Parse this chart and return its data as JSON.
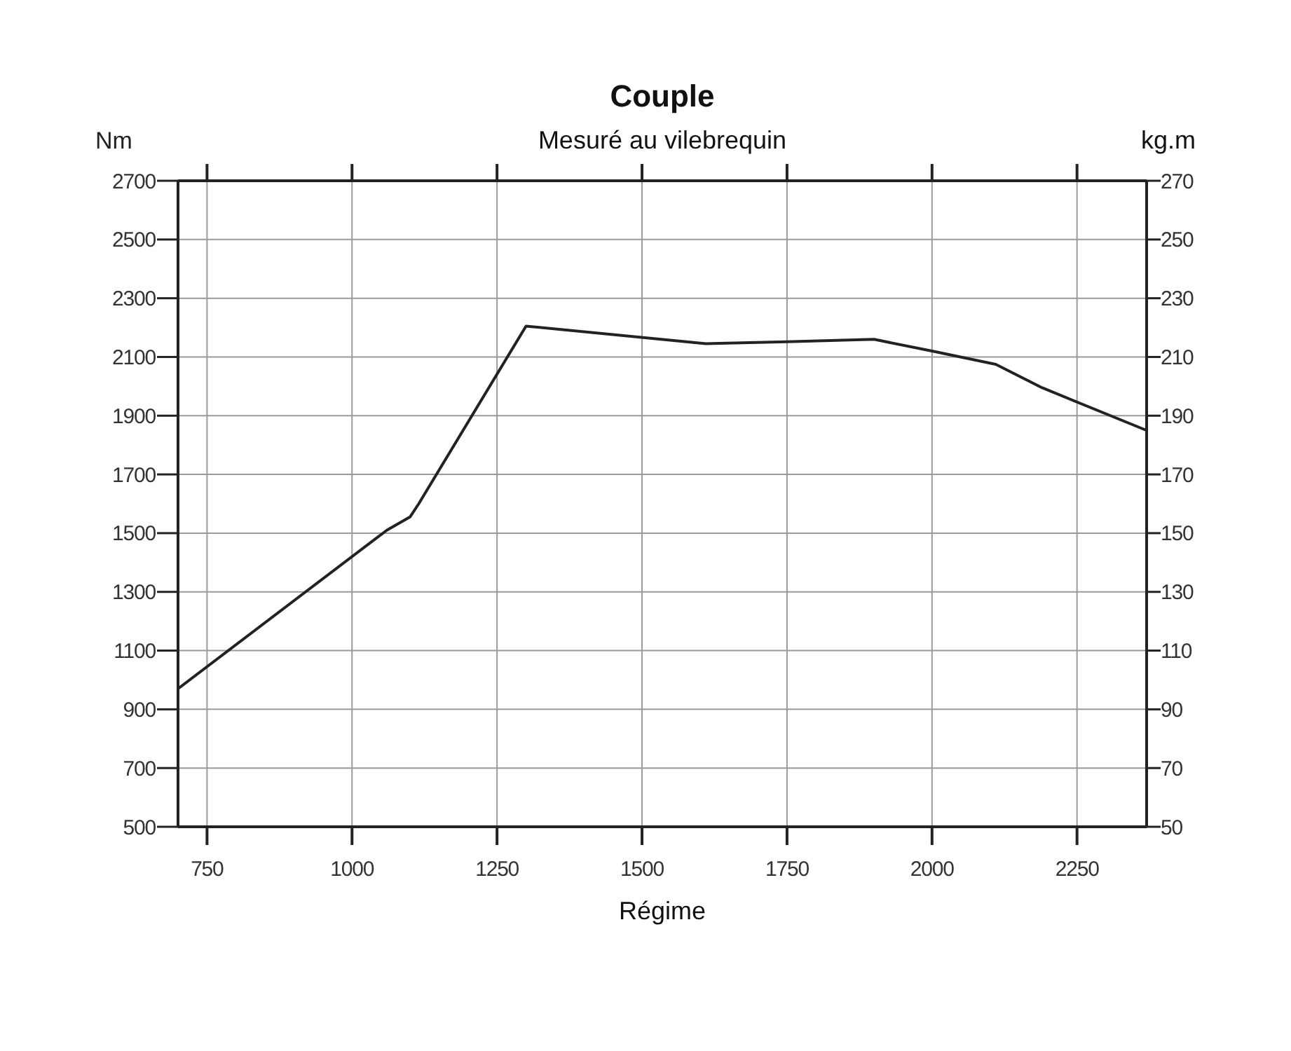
{
  "chart_data": {
    "type": "line",
    "title": "Couple",
    "subtitle": "Mesuré au vilebrequin",
    "xlabel": "Régime",
    "ylabel": "Nm",
    "y2label": "kg.m",
    "x": [
      700,
      1060,
      1100,
      1115,
      1300,
      1610,
      1750,
      1900,
      2000,
      2110,
      2190,
      2370
    ],
    "series": [
      {
        "color": "#222222",
        "values": [
          970,
          1510,
          1555,
          1600,
          2205,
          2145,
          2152,
          2160,
          2120,
          2075,
          1995,
          1850
        ]
      }
    ],
    "xlim": [
      700,
      2370
    ],
    "xticks": [
      750,
      1000,
      1250,
      1500,
      1750,
      2000,
      2250
    ],
    "ylim": [
      500,
      2700
    ],
    "yticks": [
      500,
      700,
      900,
      1100,
      1300,
      1500,
      1700,
      1900,
      2100,
      2300,
      2500,
      2700
    ],
    "y2lim": [
      50,
      270
    ],
    "y2ticks": [
      50,
      70,
      90,
      110,
      130,
      150,
      170,
      190,
      210,
      230,
      250,
      270
    ],
    "grid": true,
    "line_style": "solid"
  }
}
